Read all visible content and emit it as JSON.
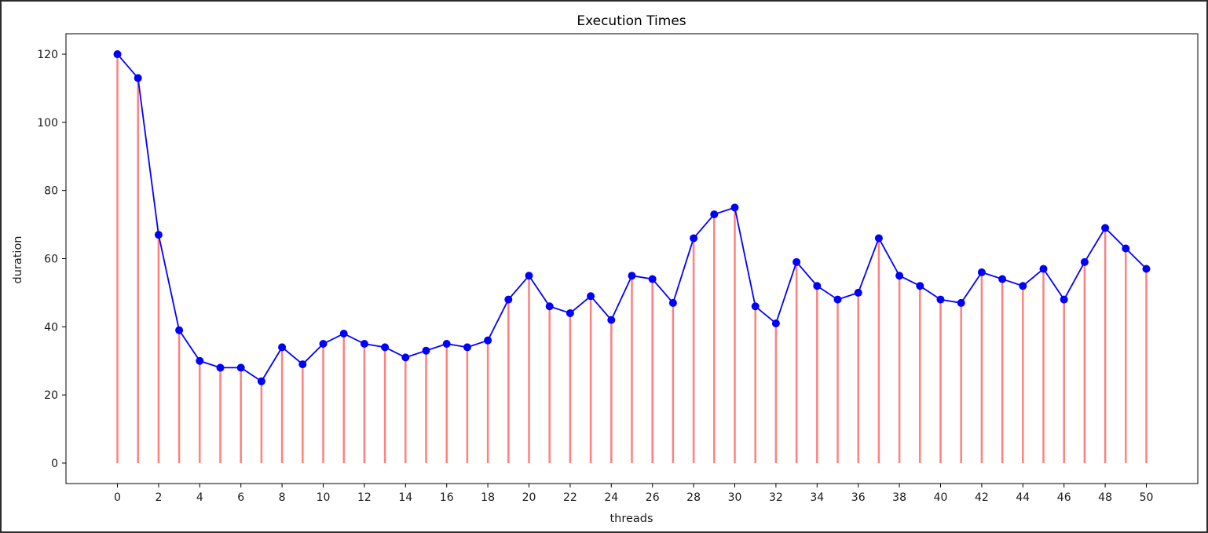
{
  "chart_data": {
    "type": "line",
    "title": "Execution Times",
    "xlabel": "threads",
    "ylabel": "duration",
    "xlim": [
      -2.5,
      52.5
    ],
    "ylim": [
      -6,
      126
    ],
    "xticks": [
      0,
      2,
      4,
      6,
      8,
      10,
      12,
      14,
      16,
      18,
      20,
      22,
      24,
      26,
      28,
      30,
      32,
      34,
      36,
      38,
      40,
      42,
      44,
      46,
      48,
      50
    ],
    "yticks": [
      0,
      20,
      40,
      60,
      80,
      100,
      120
    ],
    "grid": false,
    "x": [
      0,
      1,
      2,
      3,
      4,
      5,
      6,
      7,
      8,
      9,
      10,
      11,
      12,
      13,
      14,
      15,
      16,
      17,
      18,
      19,
      20,
      21,
      22,
      23,
      24,
      25,
      26,
      27,
      28,
      29,
      30,
      31,
      32,
      33,
      34,
      35,
      36,
      37,
      38,
      39,
      40,
      41,
      42,
      43,
      44,
      45,
      46,
      47,
      48,
      49,
      50
    ],
    "series": [
      {
        "values": [
          120,
          113,
          67,
          39,
          30,
          28,
          28,
          24,
          34,
          29,
          35,
          38,
          35,
          34,
          31,
          33,
          35,
          34,
          36,
          48,
          55,
          46,
          44,
          49,
          42,
          55,
          54,
          47,
          66,
          73,
          75,
          46,
          41,
          59,
          52,
          48,
          50,
          66,
          55,
          52,
          48,
          47,
          56,
          54,
          52,
          57,
          48,
          59,
          69,
          63,
          57
        ],
        "line_color": "#0000ff",
        "marker_color": "#0000ff",
        "stem_color": "#ff8080"
      }
    ]
  }
}
